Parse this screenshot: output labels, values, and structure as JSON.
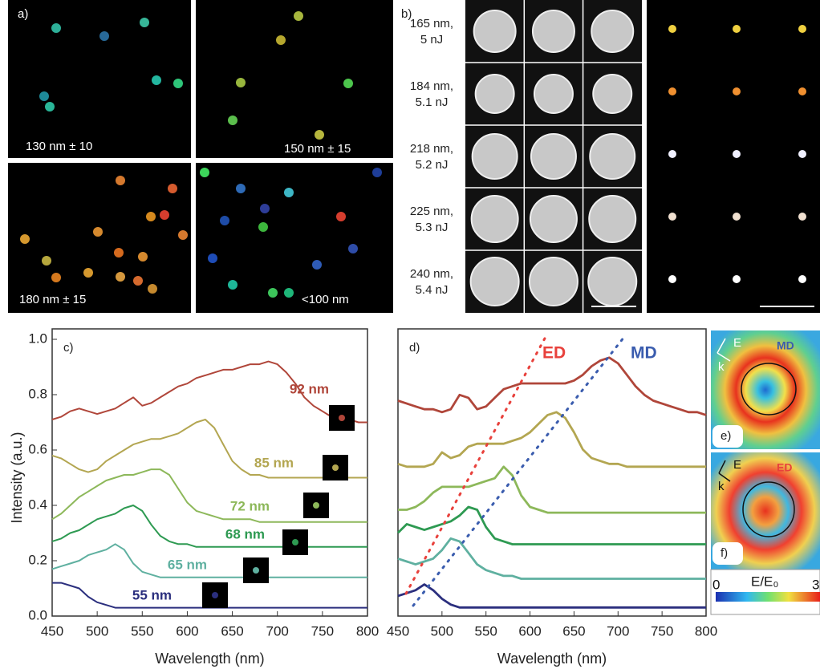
{
  "panel_a": {
    "label": "a)",
    "images": [
      "130 nm ± 10",
      "150 nm ± 15",
      "180 nm ± 15",
      "<100  nm"
    ]
  },
  "panel_b": {
    "label": "b)",
    "rows": [
      [
        "165 nm,",
        "5 nJ"
      ],
      [
        "184 nm,",
        "5.1 nJ"
      ],
      [
        "218 nm,",
        "5.2 nJ"
      ],
      [
        "225 nm,",
        "5.3 nJ"
      ],
      [
        "240 nm,",
        "5.4 nJ"
      ]
    ]
  },
  "chart_data": [
    {
      "type": "line",
      "label": "c)",
      "x_label": "Wavelength (nm)",
      "y_label": "Intensity (a.u.)",
      "xlim": [
        450,
        800
      ],
      "ylim": [
        0,
        1
      ],
      "xticks": [
        450,
        500,
        550,
        600,
        650,
        700,
        750,
        800
      ],
      "yticks": [
        {
          "value": 0,
          "label": "0.0"
        },
        0.2,
        0.4,
        0.6,
        0.8,
        {
          "value": 1,
          "label": "1.0"
        }
      ],
      "x": [
        450,
        460,
        470,
        480,
        490,
        500,
        510,
        520,
        530,
        540,
        550,
        560,
        570,
        580,
        590,
        600,
        610,
        620,
        630,
        640,
        650,
        660,
        670,
        680,
        690,
        700,
        710,
        720,
        730,
        740,
        750,
        760,
        770,
        780,
        790,
        800
      ],
      "series": [
        {
          "name": "92 nm",
          "color": "#b0463a",
          "values": [
            0.71,
            0.72,
            0.74,
            0.75,
            0.74,
            0.73,
            0.74,
            0.75,
            0.77,
            0.79,
            0.76,
            0.77,
            0.79,
            0.81,
            0.83,
            0.84,
            0.86,
            0.87,
            0.88,
            0.89,
            0.89,
            0.9,
            0.91,
            0.91,
            0.92,
            0.91,
            0.88,
            0.84,
            0.79,
            0.76,
            0.74,
            0.72,
            0.71,
            0.71,
            0.7,
            0.7
          ]
        },
        {
          "name": "85 nm",
          "color": "#b3a651",
          "values": [
            0.58,
            0.57,
            0.55,
            0.53,
            0.52,
            0.53,
            0.56,
            0.58,
            0.6,
            0.62,
            0.63,
            0.64,
            0.64,
            0.65,
            0.66,
            0.68,
            0.7,
            0.71,
            0.68,
            0.62,
            0.56,
            0.53,
            0.51,
            0.51,
            0.5,
            0.5,
            0.5,
            0.5,
            0.5,
            0.5,
            0.5,
            0.5,
            0.5,
            0.5,
            0.5,
            0.5
          ]
        },
        {
          "name": "72 nm",
          "color": "#8db85a",
          "values": [
            0.35,
            0.37,
            0.4,
            0.43,
            0.45,
            0.47,
            0.49,
            0.5,
            0.51,
            0.51,
            0.52,
            0.53,
            0.53,
            0.51,
            0.46,
            0.41,
            0.38,
            0.37,
            0.36,
            0.35,
            0.35,
            0.35,
            0.35,
            0.34,
            0.34,
            0.34,
            0.34,
            0.34,
            0.34,
            0.34,
            0.34,
            0.34,
            0.34,
            0.34,
            0.34,
            0.34
          ]
        },
        {
          "name": "68 nm",
          "color": "#2e9a52",
          "values": [
            0.27,
            0.28,
            0.3,
            0.31,
            0.33,
            0.35,
            0.36,
            0.37,
            0.39,
            0.4,
            0.38,
            0.33,
            0.29,
            0.27,
            0.26,
            0.26,
            0.25,
            0.25,
            0.25,
            0.25,
            0.25,
            0.25,
            0.25,
            0.25,
            0.25,
            0.25,
            0.25,
            0.25,
            0.25,
            0.25,
            0.25,
            0.25,
            0.25,
            0.25,
            0.25,
            0.25
          ]
        },
        {
          "name": "65 nm",
          "color": "#5fb0a0",
          "values": [
            0.17,
            0.18,
            0.19,
            0.2,
            0.22,
            0.23,
            0.24,
            0.26,
            0.24,
            0.19,
            0.16,
            0.15,
            0.14,
            0.14,
            0.14,
            0.14,
            0.14,
            0.14,
            0.14,
            0.14,
            0.14,
            0.14,
            0.14,
            0.14,
            0.14,
            0.14,
            0.14,
            0.14,
            0.14,
            0.14,
            0.14,
            0.14,
            0.14,
            0.14,
            0.14,
            0.14
          ]
        },
        {
          "name": "55 nm",
          "color": "#2b2f7e",
          "values": [
            0.12,
            0.12,
            0.11,
            0.1,
            0.07,
            0.05,
            0.04,
            0.03,
            0.03,
            0.03,
            0.03,
            0.03,
            0.03,
            0.03,
            0.03,
            0.03,
            0.03,
            0.03,
            0.03,
            0.03,
            0.03,
            0.03,
            0.03,
            0.03,
            0.03,
            0.03,
            0.03,
            0.03,
            0.03,
            0.03,
            0.03,
            0.03,
            0.03,
            0.03,
            0.03,
            0.03
          ]
        }
      ]
    },
    {
      "type": "line",
      "label": "d)",
      "x_label": "Wavelength (nm)",
      "xlim": [
        450,
        800
      ],
      "ylim": [
        0,
        1
      ],
      "xticks": [
        450,
        500,
        550,
        600,
        650,
        700,
        750,
        800
      ],
      "annotations": [
        {
          "text": "ED",
          "color": "#e8413c"
        },
        {
          "text": "MD",
          "color": "#3a5cae"
        }
      ],
      "x": [
        450,
        460,
        470,
        480,
        490,
        500,
        510,
        520,
        530,
        540,
        550,
        560,
        570,
        580,
        590,
        600,
        610,
        620,
        630,
        640,
        650,
        660,
        670,
        680,
        690,
        700,
        710,
        720,
        730,
        740,
        750,
        760,
        770,
        780,
        790,
        800
      ],
      "series": [
        {
          "color": "#b0463a",
          "values": [
            0.75,
            0.74,
            0.73,
            0.72,
            0.72,
            0.71,
            0.72,
            0.77,
            0.76,
            0.72,
            0.73,
            0.76,
            0.79,
            0.8,
            0.81,
            0.81,
            0.81,
            0.81,
            0.81,
            0.81,
            0.82,
            0.84,
            0.87,
            0.89,
            0.9,
            0.88,
            0.84,
            0.8,
            0.77,
            0.75,
            0.74,
            0.73,
            0.72,
            0.71,
            0.71,
            0.7
          ]
        },
        {
          "color": "#b3a651",
          "values": [
            0.53,
            0.52,
            0.52,
            0.52,
            0.53,
            0.57,
            0.55,
            0.56,
            0.59,
            0.6,
            0.6,
            0.6,
            0.6,
            0.61,
            0.62,
            0.64,
            0.67,
            0.7,
            0.71,
            0.69,
            0.64,
            0.58,
            0.55,
            0.54,
            0.53,
            0.53,
            0.52,
            0.52,
            0.52,
            0.52,
            0.52,
            0.52,
            0.52,
            0.52,
            0.52,
            0.52
          ]
        },
        {
          "color": "#8db85a",
          "values": [
            0.37,
            0.37,
            0.38,
            0.4,
            0.43,
            0.45,
            0.45,
            0.45,
            0.45,
            0.46,
            0.47,
            0.48,
            0.52,
            0.49,
            0.42,
            0.38,
            0.37,
            0.36,
            0.36,
            0.36,
            0.36,
            0.36,
            0.36,
            0.36,
            0.36,
            0.36,
            0.36,
            0.36,
            0.36,
            0.36,
            0.36,
            0.36,
            0.36,
            0.36,
            0.36,
            0.36
          ]
        },
        {
          "color": "#2e9a52",
          "values": [
            0.29,
            0.32,
            0.31,
            0.3,
            0.31,
            0.32,
            0.33,
            0.35,
            0.38,
            0.37,
            0.31,
            0.27,
            0.26,
            0.25,
            0.25,
            0.25,
            0.25,
            0.25,
            0.25,
            0.25,
            0.25,
            0.25,
            0.25,
            0.25,
            0.25,
            0.25,
            0.25,
            0.25,
            0.25,
            0.25,
            0.25,
            0.25,
            0.25,
            0.25,
            0.25,
            0.25
          ]
        },
        {
          "color": "#5fb0a0",
          "values": [
            0.2,
            0.19,
            0.18,
            0.19,
            0.2,
            0.23,
            0.27,
            0.26,
            0.22,
            0.18,
            0.16,
            0.15,
            0.14,
            0.14,
            0.13,
            0.13,
            0.13,
            0.13,
            0.13,
            0.13,
            0.13,
            0.13,
            0.13,
            0.13,
            0.13,
            0.13,
            0.13,
            0.13,
            0.13,
            0.13,
            0.13,
            0.13,
            0.13,
            0.13,
            0.13,
            0.13
          ]
        },
        {
          "color": "#2b2f7e",
          "values": [
            0.07,
            0.08,
            0.09,
            0.11,
            0.09,
            0.06,
            0.04,
            0.03,
            0.03,
            0.03,
            0.03,
            0.03,
            0.03,
            0.03,
            0.03,
            0.03,
            0.03,
            0.03,
            0.03,
            0.03,
            0.03,
            0.03,
            0.03,
            0.03,
            0.03,
            0.03,
            0.03,
            0.03,
            0.03,
            0.03,
            0.03,
            0.03,
            0.03,
            0.03,
            0.03,
            0.03
          ]
        }
      ]
    }
  ],
  "panel_e": {
    "label": "e)",
    "field": "E",
    "wave": "k",
    "mode": "MD"
  },
  "panel_f": {
    "label": "f)",
    "field": "E",
    "wave": "k",
    "mode": "ED"
  },
  "colorbar": {
    "min": "0",
    "label": "E/E₀",
    "max": "3"
  }
}
